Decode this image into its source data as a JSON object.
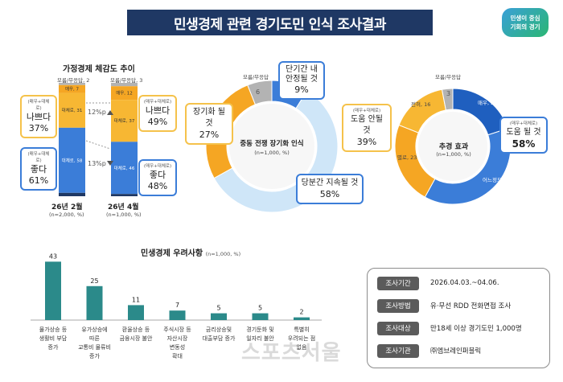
{
  "header": {
    "title": "민생경제 관련 경기도민 인식 조사결과",
    "logo_line1": "민생이 중심",
    "logo_line2": "기회의 경기"
  },
  "colors": {
    "navy": "#1f3864",
    "orange": "#f5a623",
    "blue": "#3b7dd8",
    "lightblue": "#cfe6f8",
    "teal": "#2b8a8a",
    "gray": "#b3b3b3"
  },
  "household": {
    "title": "가정경제 체감도 추이",
    "bar1": {
      "top_label": "모름/무응답, 2",
      "date": "26년 2월",
      "n": "(n=2,000, %)"
    },
    "bar2": {
      "top_label": "모름/무응답, 3",
      "date": "26년 4월",
      "n": "(n=1,000, %)"
    },
    "arrow_up": "12%p",
    "arrow_down": "13%p",
    "bad_tag": "(매우+대체로)",
    "good_tag": "(매우+대체로)",
    "bad_label": "나쁘다",
    "good_label": "좋다",
    "bad1": "37%",
    "good1": "61%",
    "bad2": "49%",
    "good2": "48%"
  },
  "inflation": {
    "center_title": "중동 전쟁 장기화 인식",
    "center_n": "(n=1,000, %)",
    "unknown_label": "모름/무응답",
    "unknown_value": "6",
    "c1_label": "단기간 내\n안정될 것",
    "c1_value": "9%",
    "c2_label": "장기화 될 것",
    "c2_value": "27%",
    "c3_label": "당분간 지속될 것",
    "c3_value": "58%"
  },
  "economy": {
    "center_title": "추경 효과",
    "center_n": "(n=1,000, %)",
    "unknown_label": "모름/무응답",
    "unknown_value": "3",
    "tag": "(매우+대체로)",
    "help_no_label": "도움 안될 것",
    "help_no_value": "39%",
    "help_yes_label": "도움 될 것",
    "help_yes_value": "58%",
    "seg_labels": {
      "a": "매우, 20",
      "b": "어느정도, 38",
      "c": "별로, 23",
      "d": "전혀, 16"
    }
  },
  "concerns": {
    "title": "민생경제 우려사항",
    "n": "(n=1,000, %)"
  },
  "survey_info": [
    {
      "label": "조사기간",
      "value": "2026.04.03.~04.06."
    },
    {
      "label": "조사방법",
      "value": "유·무선 RDD 전화면접 조사"
    },
    {
      "label": "조사대상",
      "value": "만18세 이상 경기도민 1,000명"
    },
    {
      "label": "조사기관",
      "value": "㈜엠브레인퍼블릭"
    }
  ],
  "watermark": "스포츠서울",
  "chart_data": [
    {
      "type": "bar",
      "title": "가정경제 체감도 추이",
      "categories": [
        "26년 2월",
        "26년 4월"
      ],
      "series": [
        {
          "name": "모름/무응답",
          "values": [
            2,
            3
          ]
        },
        {
          "name": "매우",
          "values": [
            7,
            12
          ]
        },
        {
          "name": "대체로",
          "values": [
            31,
            37
          ]
        },
        {
          "name": "대체로",
          "values": [
            58,
            46
          ]
        },
        {
          "name": "매우",
          "values": [
            3,
            2
          ]
        }
      ],
      "segment_labels": [
        [
          "모름/무응답, 2",
          "매우, 7",
          "대체로, 31",
          "대체로, 58",
          "매우, 3"
        ],
        [
          "모름/무응답, 3",
          "매우, 12",
          "대체로, 37",
          "대체로, 46",
          "매우, 2"
        ]
      ]
    },
    {
      "type": "pie",
      "title": "중동 전쟁 장기화 인식",
      "categories": [
        "단기간 내 안정될 것",
        "당분간 지속될 것",
        "장기화 될 것",
        "모름/무응답"
      ],
      "values": [
        9,
        58,
        27,
        6
      ]
    },
    {
      "type": "pie",
      "title": "추경 효과",
      "categories": [
        "매우",
        "어느정도",
        "별로",
        "전혀",
        "모름/무응답"
      ],
      "values": [
        20,
        38,
        23,
        16,
        3
      ]
    },
    {
      "type": "bar",
      "title": "민생경제 우려사항",
      "categories": [
        "물가상승 등\n생활비 부담\n증가",
        "유가상승에\n따른\n교통비 물류비\n증가",
        "환율상승 등\n금융시장 불안",
        "주식시장 등\n자산시장\n변동성\n확대",
        "금리상승및\n대출부담 증가",
        "경기둔화 및\n일자리 불안",
        "특별히\n우려되는 점\n없음"
      ],
      "values": [
        43,
        25,
        11,
        7,
        5,
        5,
        2
      ]
    }
  ]
}
